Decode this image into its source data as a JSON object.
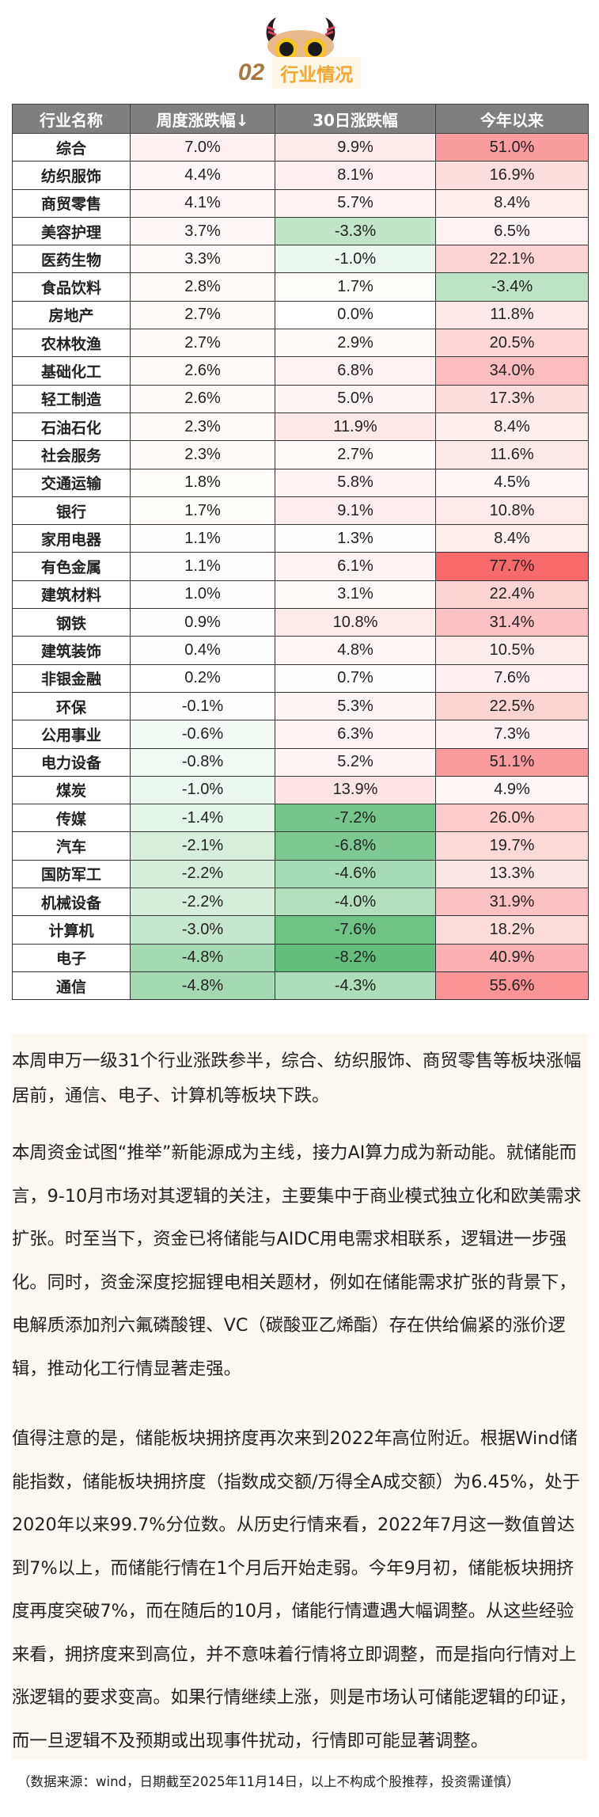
{
  "section": {
    "number": "02",
    "title": "行业情况"
  },
  "table": {
    "headers": [
      "行业名称",
      "周度涨跌幅↓",
      "30日涨跌幅",
      "今年以来"
    ],
    "color_scale": {
      "negative": "#63be7b",
      "zero": "#ffffff",
      "positive": "#f8696b"
    },
    "rows": [
      {
        "name": "综合",
        "week": "7.0%",
        "d30": "9.9%",
        "ytd": "51.0%"
      },
      {
        "name": "纺织服饰",
        "week": "4.4%",
        "d30": "8.1%",
        "ytd": "16.9%"
      },
      {
        "name": "商贸零售",
        "week": "4.1%",
        "d30": "5.7%",
        "ytd": "8.4%"
      },
      {
        "name": "美容护理",
        "week": "3.7%",
        "d30": "-3.3%",
        "ytd": "6.5%"
      },
      {
        "name": "医药生物",
        "week": "3.3%",
        "d30": "-1.0%",
        "ytd": "22.1%"
      },
      {
        "name": "食品饮料",
        "week": "2.8%",
        "d30": "1.7%",
        "ytd": "-3.4%"
      },
      {
        "name": "房地产",
        "week": "2.7%",
        "d30": "0.0%",
        "ytd": "11.8%"
      },
      {
        "name": "农林牧渔",
        "week": "2.7%",
        "d30": "2.9%",
        "ytd": "20.5%"
      },
      {
        "name": "基础化工",
        "week": "2.6%",
        "d30": "6.8%",
        "ytd": "34.0%"
      },
      {
        "name": "轻工制造",
        "week": "2.6%",
        "d30": "5.0%",
        "ytd": "17.3%"
      },
      {
        "name": "石油石化",
        "week": "2.3%",
        "d30": "11.9%",
        "ytd": "8.4%"
      },
      {
        "name": "社会服务",
        "week": "2.3%",
        "d30": "2.7%",
        "ytd": "11.6%"
      },
      {
        "name": "交通运输",
        "week": "1.8%",
        "d30": "5.8%",
        "ytd": "4.5%"
      },
      {
        "name": "银行",
        "week": "1.7%",
        "d30": "9.1%",
        "ytd": "10.8%"
      },
      {
        "name": "家用电器",
        "week": "1.1%",
        "d30": "1.3%",
        "ytd": "8.4%"
      },
      {
        "name": "有色金属",
        "week": "1.1%",
        "d30": "6.1%",
        "ytd": "77.7%"
      },
      {
        "name": "建筑材料",
        "week": "1.0%",
        "d30": "3.1%",
        "ytd": "22.4%"
      },
      {
        "name": "钢铁",
        "week": "0.9%",
        "d30": "10.8%",
        "ytd": "31.4%"
      },
      {
        "name": "建筑装饰",
        "week": "0.4%",
        "d30": "4.8%",
        "ytd": "10.5%"
      },
      {
        "name": "非银金融",
        "week": "0.2%",
        "d30": "0.7%",
        "ytd": "7.6%"
      },
      {
        "name": "环保",
        "week": "-0.1%",
        "d30": "5.3%",
        "ytd": "22.5%"
      },
      {
        "name": "公用事业",
        "week": "-0.6%",
        "d30": "6.3%",
        "ytd": "7.3%"
      },
      {
        "name": "电力设备",
        "week": "-0.8%",
        "d30": "5.2%",
        "ytd": "51.1%"
      },
      {
        "name": "煤炭",
        "week": "-1.0%",
        "d30": "13.9%",
        "ytd": "4.9%"
      },
      {
        "name": "传媒",
        "week": "-1.4%",
        "d30": "-7.2%",
        "ytd": "26.0%"
      },
      {
        "name": "汽车",
        "week": "-2.1%",
        "d30": "-6.8%",
        "ytd": "19.7%"
      },
      {
        "name": "国防军工",
        "week": "-2.2%",
        "d30": "-4.6%",
        "ytd": "13.3%"
      },
      {
        "name": "机械设备",
        "week": "-2.2%",
        "d30": "-4.0%",
        "ytd": "31.9%"
      },
      {
        "name": "计算机",
        "week": "-3.0%",
        "d30": "-7.6%",
        "ytd": "18.2%"
      },
      {
        "name": "电子",
        "week": "-4.8%",
        "d30": "-8.2%",
        "ytd": "40.9%"
      },
      {
        "name": "通信",
        "week": "-4.8%",
        "d30": "-4.3%",
        "ytd": "55.6%"
      }
    ]
  },
  "paragraphs": [
    "本周申万一级31个行业涨跌参半，综合、纺织服饰、商贸零售等板块涨幅居前，通信、电子、计算机等板块下跌。",
    "本周资金试图“推举”新能源成为主线，接力AI算力成为新动能。就储能而言，9-10月市场对其逻辑的关注，主要集中于商业模式独立化和欧美需求扩张。时至当下，资金已将储能与AIDC用电需求相联系，逻辑进一步强化。同时，资金深度挖掘锂电相关题材，例如在储能需求扩张的背景下，电解质添加剂六氟磷酸锂、VC（碳酸亚乙烯酯）存在供给偏紧的涨价逻辑，推动化工行情显著走强。",
    "值得注意的是，储能板块拥挤度再次来到2022年高位附近。根据Wind储能指数，储能板块拥挤度（指数成交额/万得全A成交额）为6.45%，处于2020年以来99.7%分位数。从历史行情来看，2022年7月这一数值曾达到7%以上，而储能行情在1个月后开始走弱。今年9月初，储能板块拥挤度再度突破7%，而在随后的10月，储能行情遭遇大幅调整。从这些经验来看，拥挤度来到高位，并不意味着行情将立即调整，而是指向行情对上涨逻辑的要求变高。如果行情继续上涨，则是市场认可储能逻辑的印证，而一旦逻辑不及预期或出现事件扰动，行情即可能显著调整。"
  ],
  "source_note": "（数据来源：wind，日期截至2025年11月14日，以上不构成个股推荐，投资需谨慎）"
}
